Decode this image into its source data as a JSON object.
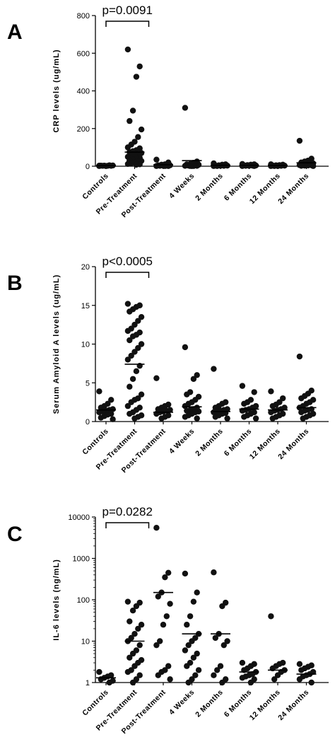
{
  "chart_data": [
    {
      "type": "scatter",
      "panel": "A",
      "ylabel": "CRP levels (ug/mL)",
      "ylim": [
        0,
        800
      ],
      "yscale": "linear",
      "yticks": [
        "0",
        "200",
        "400",
        "600",
        "800"
      ],
      "annotation": "p=0.0091",
      "categories": [
        "Controls",
        "Pre-Treatment",
        "Post-Treatment",
        "4 Weeks",
        "2 Months",
        "6 Months",
        "12 Months",
        "24 Months"
      ],
      "points": [
        [
          1,
          2,
          2,
          3,
          3,
          4,
          5,
          1,
          2,
          3
        ],
        [
          620,
          530,
          475,
          295,
          240,
          195,
          155,
          130,
          115,
          100,
          95,
          85,
          80,
          75,
          70,
          65,
          60,
          55,
          50,
          45,
          40,
          35,
          30,
          28,
          25,
          20,
          15,
          12,
          10,
          8
        ],
        [
          35,
          20,
          10,
          8,
          5,
          5,
          3,
          2,
          2,
          1,
          1,
          1
        ],
        [
          310,
          25,
          18,
          12,
          10,
          8,
          5,
          4,
          3,
          2,
          2,
          1,
          1
        ],
        [
          15,
          10,
          8,
          5,
          4,
          3,
          2,
          2,
          1,
          1
        ],
        [
          12,
          10,
          8,
          6,
          5,
          4,
          3,
          2,
          2,
          1,
          1
        ],
        [
          10,
          8,
          6,
          5,
          4,
          3,
          2,
          1,
          1,
          1
        ],
        [
          135,
          40,
          30,
          25,
          20,
          15,
          12,
          10,
          8,
          6,
          5,
          4,
          3,
          2,
          1
        ]
      ],
      "means": [
        3,
        75,
        8,
        30,
        5,
        5,
        4,
        18
      ]
    },
    {
      "type": "scatter",
      "panel": "B",
      "ylabel": "Serum Amyloid A levels (ug/mL)",
      "ylim": [
        0,
        20
      ],
      "yscale": "linear",
      "yticks": [
        "0",
        "5",
        "10",
        "15",
        "20"
      ],
      "annotation": "p<0.0005",
      "categories": [
        "Controls",
        "Pre-Treatment",
        "Post-Treatment",
        "4 Weeks",
        "2 Months",
        "6 Months",
        "12 Months",
        "24 Months"
      ],
      "points": [
        [
          3.9,
          2.8,
          2.3,
          2.0,
          1.8,
          1.6,
          1.5,
          1.4,
          1.3,
          1.2,
          1.0,
          0.9,
          0.7,
          0.5,
          0.3
        ],
        [
          15.2,
          15.0,
          14.8,
          14.5,
          14.2,
          13.5,
          13.0,
          12.5,
          12.0,
          11.7,
          11.5,
          11.2,
          11.0,
          10.5,
          10.0,
          9.5,
          9.0,
          8.5,
          8.0,
          7.2,
          6.5,
          5.5,
          4.5,
          3.5,
          3.0,
          2.8,
          2.5,
          2.0,
          1.8,
          1.5,
          1.2,
          1.0,
          0.8,
          0.6,
          0.4
        ],
        [
          5.6,
          2.2,
          2.0,
          1.8,
          1.6,
          1.5,
          1.4,
          1.3,
          1.2,
          1.0,
          0.8,
          0.6,
          0.4
        ],
        [
          9.6,
          6.0,
          5.5,
          3.8,
          3.5,
          3.2,
          2.8,
          2.5,
          2.3,
          2.0,
          1.8,
          1.6,
          1.5,
          1.4,
          1.3,
          1.2,
          1.0,
          0.8,
          0.6,
          0.4
        ],
        [
          6.8,
          2.5,
          2.3,
          2.0,
          1.8,
          1.6,
          1.5,
          1.4,
          1.3,
          1.2,
          1.1,
          1.0,
          0.8,
          0.6,
          0.4
        ],
        [
          4.6,
          3.8,
          2.8,
          2.5,
          2.3,
          2.0,
          1.8,
          1.6,
          1.5,
          1.4,
          1.2,
          1.0,
          0.8,
          0.6,
          0.4
        ],
        [
          3.9,
          3.0,
          2.5,
          2.2,
          2.0,
          1.8,
          1.6,
          1.5,
          1.4,
          1.2,
          1.0,
          0.8,
          0.6,
          0.4
        ],
        [
          8.4,
          4.0,
          3.6,
          3.3,
          3.0,
          2.8,
          2.5,
          2.3,
          2.0,
          1.8,
          1.6,
          1.5,
          1.4,
          1.2,
          1.0,
          0.8,
          0.6,
          0.4
        ]
      ],
      "means": [
        1.5,
        7.4,
        1.2,
        1.9,
        1.3,
        1.6,
        1.5,
        1.8
      ]
    },
    {
      "type": "scatter",
      "panel": "C",
      "ylabel": "IL-6 levels (ng/mL)",
      "ylim": [
        1,
        10000
      ],
      "yscale": "log",
      "yticks": [
        "1",
        "10",
        "100",
        "1000",
        "10000"
      ],
      "annotation": "p=0.0282",
      "categories": [
        "Controls",
        "Pre-Treatment",
        "Post-Treatment",
        "4 Weeks",
        "2 Months",
        "6 Months",
        "12 Months",
        "24 Months"
      ],
      "points": [
        [
          1.8,
          1.5,
          1.4,
          1.3,
          1.2,
          1.1,
          1.0
        ],
        [
          90,
          85,
          70,
          55,
          30,
          25,
          20,
          15,
          12,
          10,
          8,
          6,
          5,
          4,
          3.5,
          3,
          2.5,
          2,
          1.8,
          1.5,
          1.2,
          1.0
        ],
        [
          5500,
          450,
          350,
          150,
          120,
          80,
          40,
          25,
          10,
          8,
          2.5,
          2.0,
          1.8,
          1.5,
          1.2
        ],
        [
          430,
          150,
          90,
          40,
          25,
          15,
          12,
          10,
          8,
          6,
          5,
          4,
          3,
          2.5,
          2,
          1.5,
          1.2,
          1.0
        ],
        [
          460,
          85,
          70,
          15,
          12,
          10,
          8,
          2.5,
          2.0,
          1.5,
          1.2,
          1.0
        ],
        [
          3.0,
          2.8,
          2.5,
          2.2,
          2.0,
          1.8,
          1.6,
          1.5,
          1.4,
          1.3,
          1.2,
          1.0
        ],
        [
          40,
          3.0,
          2.8,
          2.5,
          2.2,
          2.0,
          1.8,
          1.5,
          1.2
        ],
        [
          2.8,
          2.6,
          2.4,
          2.2,
          2.0,
          1.8,
          1.6,
          1.5,
          1.4,
          1.2,
          1.0
        ]
      ],
      "means": [
        1.3,
        10,
        150,
        15,
        15,
        1.8,
        2.0,
        1.6
      ]
    }
  ]
}
